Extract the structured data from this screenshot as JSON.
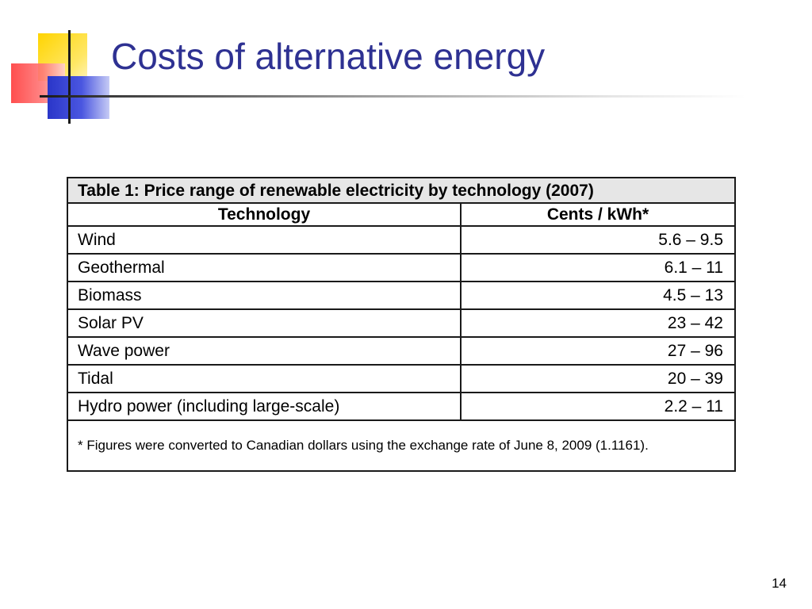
{
  "slide": {
    "title": "Costs of alternative energy",
    "page_number": "14"
  },
  "table": {
    "caption": "Table 1: Price range of renewable electricity by technology (2007)",
    "headers": [
      "Technology",
      "Cents / kWh*"
    ],
    "rows": [
      {
        "technology": "Wind",
        "cost": "5.6 – 9.5"
      },
      {
        "technology": "Geothermal",
        "cost": "6.1 – 11"
      },
      {
        "technology": "Biomass",
        "cost": "4.5 – 13"
      },
      {
        "technology": "Solar PV",
        "cost": "23 – 42"
      },
      {
        "technology": "Wave power",
        "cost": "27 – 96"
      },
      {
        "technology": "Tidal",
        "cost": "20 – 39"
      },
      {
        "technology": "Hydro power (including large-scale)",
        "cost": "2.2 – 11"
      }
    ],
    "footnote": "* Figures were converted to Canadian dollars using the exchange rate of June 8, 2009 (1.1161)."
  },
  "colors": {
    "title": "#2e3192",
    "caption_bg": "#e6e6e6",
    "logo_yellow": "#ffd400",
    "logo_red": "#ff3b3b",
    "logo_blue": "#2a36c9"
  }
}
